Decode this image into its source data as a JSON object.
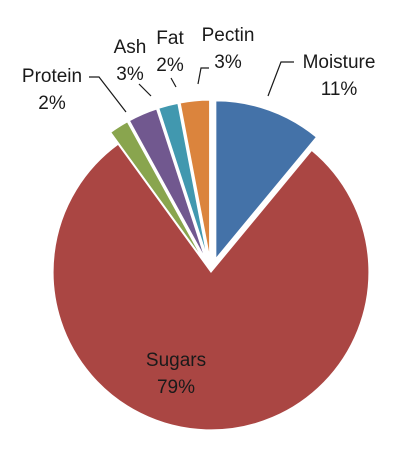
{
  "chart_data": {
    "type": "pie",
    "title": "",
    "slices": [
      {
        "name": "Moisture",
        "percent_label": "11%",
        "value": 11,
        "color": "#4472a8",
        "exploded": true
      },
      {
        "name": "Sugars",
        "percent_label": "79%",
        "value": 79,
        "color": "#aa4643",
        "exploded": false
      },
      {
        "name": "Protein",
        "percent_label": "2%",
        "value": 2,
        "color": "#89a54e",
        "exploded": true
      },
      {
        "name": "Ash",
        "percent_label": "3%",
        "value": 3,
        "color": "#71588f",
        "exploded": true
      },
      {
        "name": "Fat",
        "percent_label": "2%",
        "value": 2,
        "color": "#4198af",
        "exploded": true
      },
      {
        "name": "Pectin",
        "percent_label": "3%",
        "value": 3,
        "color": "#db843d",
        "exploded": true
      }
    ],
    "legend": "none",
    "data_labels": "outside with leader lines"
  }
}
